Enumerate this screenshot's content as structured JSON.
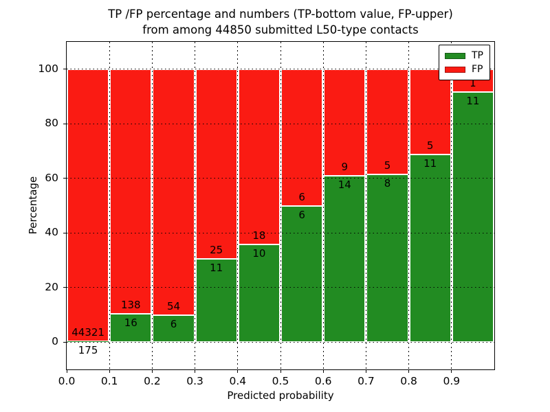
{
  "figure": {
    "title_line1": "TP /FP percentage and numbers (TP-bottom value, FP-upper)",
    "title_line2": "from among 44850 submitted L50-type contacts"
  },
  "chart_data": {
    "type": "bar",
    "stacked": true,
    "normalized_to_percent": true,
    "title": "TP /FP percentage and numbers (TP-bottom value, FP-upper) from among 44850 submitted L50-type contacts",
    "xlabel": "Predicted probability",
    "ylabel": "Percentage",
    "bin_edges": [
      0.0,
      0.1,
      0.2,
      0.3,
      0.4,
      0.5,
      0.6,
      0.7,
      0.8,
      0.9,
      1.0
    ],
    "series": [
      {
        "name": "TP",
        "color": "#228b22",
        "counts": [
          175,
          16,
          6,
          11,
          10,
          6,
          14,
          8,
          11,
          11
        ]
      },
      {
        "name": "FP",
        "color": "#fa1b13",
        "counts": [
          44321,
          138,
          54,
          25,
          18,
          6,
          9,
          5,
          5,
          1
        ]
      }
    ],
    "tp_percent": [
      0.39,
      10.39,
      10.0,
      30.56,
      35.71,
      50.0,
      60.87,
      61.54,
      68.75,
      91.67
    ],
    "total_contacts": 44850,
    "xticks": [
      "0.0",
      "0.1",
      "0.2",
      "0.3",
      "0.4",
      "0.5",
      "0.6",
      "0.7",
      "0.8",
      "0.9"
    ],
    "yticks": [
      0,
      20,
      40,
      60,
      80,
      100
    ],
    "xlim": [
      0.0,
      1.0
    ],
    "ylim": [
      -10,
      110
    ],
    "grid": true,
    "legend": {
      "position": "upper right",
      "entries": [
        {
          "label": "TP",
          "color": "#228b22"
        },
        {
          "label": "FP",
          "color": "#fa1b13"
        }
      ]
    }
  }
}
